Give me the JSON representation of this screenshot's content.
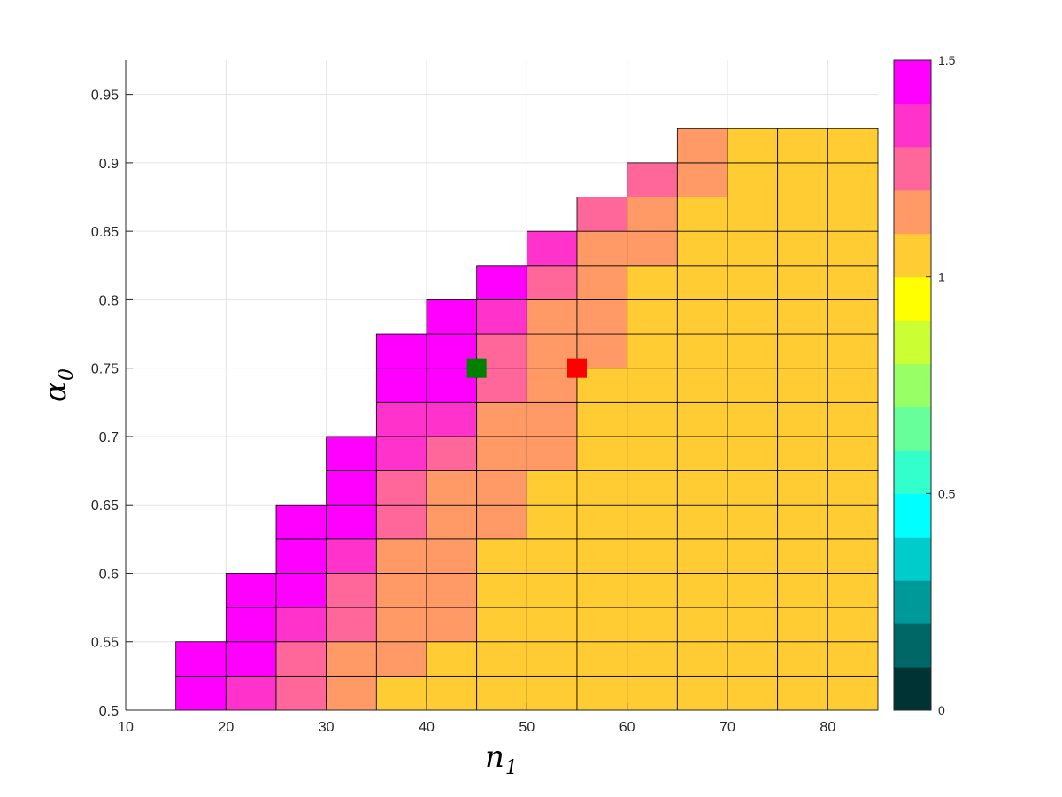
{
  "chart_data": {
    "type": "heatmap",
    "title": "",
    "xlabel": {
      "symbol": "n",
      "subscript": "1"
    },
    "ylabel": {
      "symbol": "α",
      "subscript": "0"
    },
    "xlim": [
      10,
      85
    ],
    "ylim": [
      0.5,
      0.975
    ],
    "xticks": [
      10,
      20,
      30,
      40,
      50,
      60,
      70,
      80
    ],
    "yticks": [
      0.5,
      0.55,
      0.6,
      0.65,
      0.7,
      0.75,
      0.8,
      0.85,
      0.9,
      0.95
    ],
    "grid": true,
    "x_edges": [
      15,
      20,
      25,
      30,
      35,
      40,
      45,
      50,
      55,
      60,
      65,
      70,
      75,
      80,
      85
    ],
    "y_edges": [
      0.5,
      0.525,
      0.55,
      0.575,
      0.6,
      0.625,
      0.65,
      0.675,
      0.7,
      0.725,
      0.75,
      0.775,
      0.8,
      0.825,
      0.85,
      0.875,
      0.9,
      0.925
    ],
    "column_fill_rows": [
      2,
      4,
      6,
      8,
      10,
      11,
      12,
      13,
      14,
      15,
      16,
      16,
      17,
      17
    ],
    "value_rows_bottom_to_top": [
      [
        1.45,
        1.35,
        1.25,
        1.15,
        1.05,
        1.05,
        1.05,
        1.05,
        1.05,
        1.05,
        1.05,
        1.05,
        1.05,
        1.05
      ],
      [
        1.45,
        1.45,
        1.25,
        1.15,
        1.15,
        1.05,
        1.05,
        1.05,
        1.05,
        1.05,
        1.05,
        1.05,
        1.05,
        1.05
      ],
      [
        null,
        1.45,
        1.35,
        1.25,
        1.15,
        1.15,
        1.05,
        1.05,
        1.05,
        1.05,
        1.05,
        1.05,
        1.05,
        1.05
      ],
      [
        null,
        1.45,
        1.45,
        1.25,
        1.15,
        1.15,
        1.05,
        1.05,
        1.05,
        1.05,
        1.05,
        1.05,
        1.05,
        1.05
      ],
      [
        null,
        null,
        1.45,
        1.35,
        1.15,
        1.15,
        1.05,
        1.05,
        1.05,
        1.05,
        1.05,
        1.05,
        1.05,
        1.05
      ],
      [
        null,
        null,
        1.45,
        1.45,
        1.25,
        1.15,
        1.15,
        1.05,
        1.05,
        1.05,
        1.05,
        1.05,
        1.05,
        1.05
      ],
      [
        null,
        null,
        null,
        1.45,
        1.25,
        1.15,
        1.15,
        1.05,
        1.05,
        1.05,
        1.05,
        1.05,
        1.05,
        1.05
      ],
      [
        null,
        null,
        null,
        1.45,
        1.35,
        1.25,
        1.15,
        1.15,
        1.05,
        1.05,
        1.05,
        1.05,
        1.05,
        1.05
      ],
      [
        null,
        null,
        null,
        null,
        1.35,
        1.35,
        1.15,
        1.15,
        1.05,
        1.05,
        1.05,
        1.05,
        1.05,
        1.05
      ],
      [
        null,
        null,
        null,
        null,
        1.45,
        1.45,
        1.25,
        1.15,
        1.05,
        1.05,
        1.05,
        1.05,
        1.05,
        1.05
      ],
      [
        null,
        null,
        null,
        null,
        1.45,
        1.45,
        1.25,
        1.15,
        1.15,
        1.05,
        1.05,
        1.05,
        1.05,
        1.05
      ],
      [
        null,
        null,
        null,
        null,
        null,
        1.45,
        1.35,
        1.15,
        1.15,
        1.05,
        1.05,
        1.05,
        1.05,
        1.05
      ],
      [
        null,
        null,
        null,
        null,
        null,
        null,
        1.45,
        1.25,
        1.15,
        1.05,
        1.05,
        1.05,
        1.05,
        1.05
      ],
      [
        null,
        null,
        null,
        null,
        null,
        null,
        null,
        1.35,
        1.15,
        1.15,
        1.05,
        1.05,
        1.05,
        1.05
      ],
      [
        null,
        null,
        null,
        null,
        null,
        null,
        null,
        null,
        1.25,
        1.15,
        1.05,
        1.05,
        1.05,
        1.05
      ],
      [
        null,
        null,
        null,
        null,
        null,
        null,
        null,
        null,
        null,
        1.25,
        1.15,
        1.05,
        1.05,
        1.05
      ],
      [
        null,
        null,
        null,
        null,
        null,
        null,
        null,
        null,
        null,
        null,
        1.15,
        1.05,
        1.05,
        1.05
      ]
    ],
    "markers": [
      {
        "x": 45,
        "y": 0.75,
        "color": "#008000"
      },
      {
        "x": 55,
        "y": 0.75,
        "color": "#ff0000"
      }
    ],
    "colorbar": {
      "limits": [
        0,
        1.5
      ],
      "ticks": [
        0,
        0.5,
        1,
        1.5
      ],
      "colors": [
        "#003333",
        "#006666",
        "#009999",
        "#00cccc",
        "#00ffff",
        "#33ffcc",
        "#66ff99",
        "#99ff66",
        "#ccff33",
        "#ffff00",
        "#ffcc33",
        "#ff9966",
        "#ff6699",
        "#ff33cc",
        "#ff00ff"
      ]
    }
  }
}
